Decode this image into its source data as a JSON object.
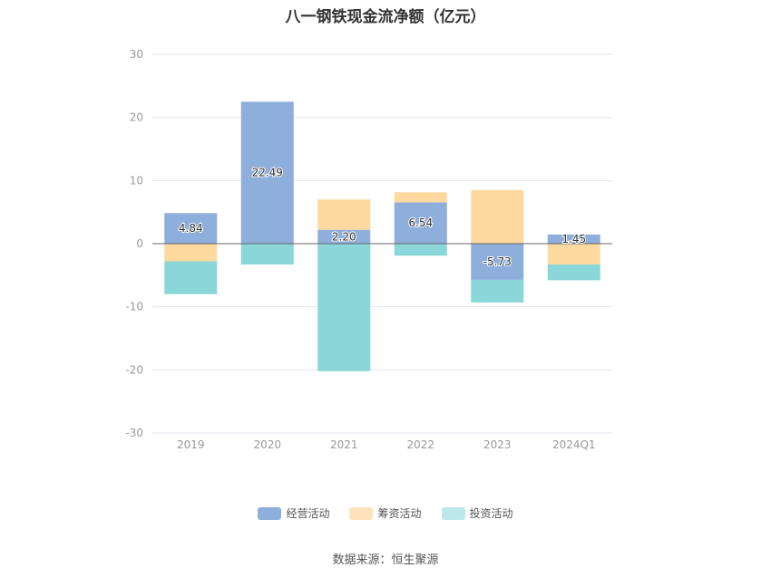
{
  "chart_data": {
    "type": "bar",
    "stacked": true,
    "title": "八一钢铁现金流净额（亿元）",
    "categories": [
      "2019",
      "2020",
      "2021",
      "2022",
      "2023",
      "2024Q1"
    ],
    "ylim": [
      -30,
      30
    ],
    "yticks": [
      30,
      20,
      10,
      0,
      -10,
      -20,
      -30
    ],
    "grid": true,
    "legend_position": "bottom",
    "series": [
      {
        "name": "经营活动",
        "color": "#8eaedb",
        "values": [
          4.84,
          22.49,
          2.2,
          6.54,
          -5.73,
          1.45
        ],
        "labels": [
          "4.84",
          "22.49",
          "2.20",
          "6.54",
          "-5.73",
          "1.45"
        ]
      },
      {
        "name": "筹资活动",
        "color": "#fdd9a0",
        "values": [
          -2.8,
          0,
          4.8,
          1.6,
          8.5,
          -3.3
        ]
      },
      {
        "name": "投资活动",
        "color": "#8ad6d9",
        "values": [
          -5.2,
          -3.3,
          -20.2,
          -1.9,
          -3.6,
          -2.5
        ]
      }
    ],
    "source": "数据来源：恒生聚源"
  },
  "legend_colors": [
    "#8eaedb",
    "#fde2bb",
    "#bde8ea"
  ]
}
